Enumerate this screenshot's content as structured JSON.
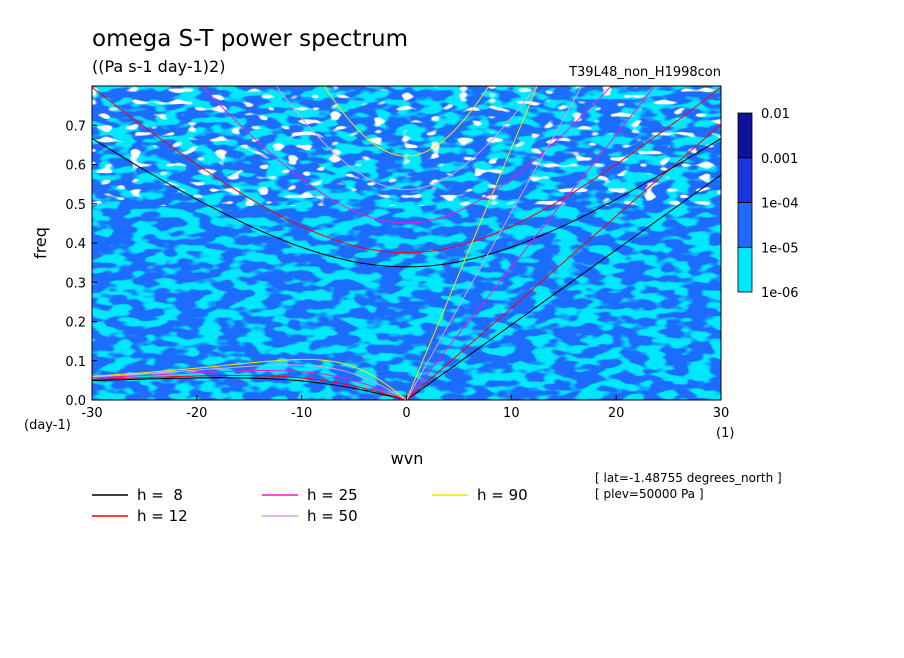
{
  "chart_data": {
    "type": "heatmap",
    "title": "omega S-T power spectrum",
    "subtitle": "((Pa s-1 day-1)2)",
    "case_label": "T39L48_non_H1998con",
    "xlabel": "wvn",
    "ylabel": "freq",
    "x_unit": "(1)",
    "y_unit": "(day-1)",
    "xlim": [
      -30,
      30
    ],
    "ylim": [
      0,
      0.8
    ],
    "x_ticks": [
      "-30",
      "-20",
      "-10",
      "0",
      "10",
      "20",
      "30"
    ],
    "y_ticks": [
      "0.0",
      "0.1",
      "0.2",
      "0.3",
      "0.4",
      "0.5",
      "0.6",
      "0.7"
    ],
    "colorbar": {
      "levels": [
        "1e-06",
        "1e-05",
        "1e-04",
        "0.001",
        "0.01"
      ],
      "colors": [
        "#00e8ff",
        "#1e6cff",
        "#1a35e0",
        "#0e139a",
        "#4b0fa8"
      ]
    },
    "grid": false,
    "dispersion_curves": [
      {
        "label": "h =  8",
        "h": 8,
        "color": "#000000"
      },
      {
        "label": "h = 12",
        "h": 12,
        "color": "#ff0000"
      },
      {
        "label": "h = 25",
        "h": 25,
        "color": "#ff14c8"
      },
      {
        "label": "h = 50",
        "h": 50,
        "color": "#d8a0e8"
      },
      {
        "label": "h = 90",
        "h": 90,
        "color": "#ffe000"
      }
    ],
    "annotations": [
      "[ lat=-1.48755 degrees_north ]",
      "[ plev=50000 Pa ]"
    ]
  }
}
